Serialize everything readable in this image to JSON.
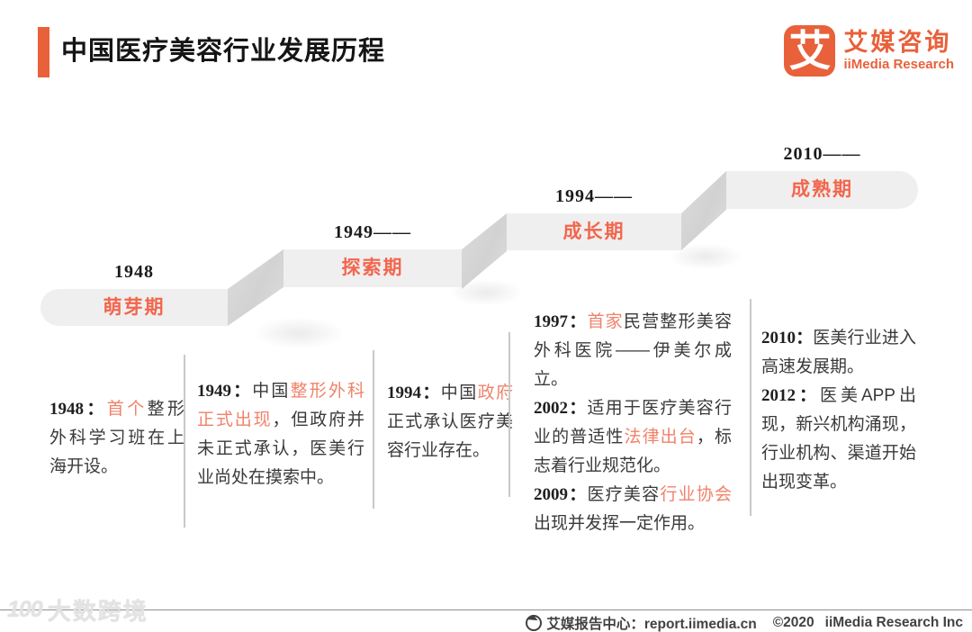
{
  "header": {
    "title": "中国医疗美容行业发展历程",
    "logo": {
      "mark": "艾",
      "name_cn": "艾媒咨询",
      "name_en": "iiMedia Research"
    }
  },
  "colors": {
    "accent_orange": "#E8613B",
    "stage_label_orange": "#F2664D",
    "highlight_salmon": "#F0826A",
    "stair_bar_gray": "#F0EFEF",
    "connector_gray": "#D7D7D7"
  },
  "timeline": {
    "stages": [
      {
        "year": "1948",
        "label": "萌芽期"
      },
      {
        "year": "1949——",
        "label": "探索期"
      },
      {
        "year": "1994——",
        "label": "成长期"
      },
      {
        "year": "2010——",
        "label": "成熟期"
      }
    ]
  },
  "details": {
    "columns": [
      {
        "segments": [
          {
            "t": "1948：",
            "b": 1
          },
          {
            "t": "首个",
            "hl": 1
          },
          {
            "t": "整形外科学习班在上海开设。"
          }
        ]
      },
      {
        "segments": [
          {
            "t": "1949：",
            "b": 1
          },
          {
            "t": "中国"
          },
          {
            "t": "整形外科正式出现",
            "hl": 1
          },
          {
            "t": "，但政府并未正式承认，医美行业尚处在摸索中。"
          }
        ]
      },
      {
        "segments": [
          {
            "t": "1994：",
            "b": 1
          },
          {
            "t": "中国"
          },
          {
            "t": "政府",
            "hl": 1
          },
          {
            "t": "正式承认医疗美容行业存在。"
          }
        ]
      },
      {
        "segments": [
          {
            "t": "1997：",
            "b": 1
          },
          {
            "t": "首家",
            "hl": 1
          },
          {
            "t": "民营整形美容外科医院——伊美尔成立。"
          },
          {
            "t": "\n2002：",
            "b": 1
          },
          {
            "t": "适用于医疗美容行业的普适性"
          },
          {
            "t": "法律出台",
            "hl": 1
          },
          {
            "t": "，标志着行业规范化。"
          },
          {
            "t": "\n2009：",
            "b": 1
          },
          {
            "t": "医疗美容"
          },
          {
            "t": "行业协会",
            "hl": 1
          },
          {
            "t": "出现并发挥一定作用。"
          }
        ]
      },
      {
        "segments": [
          {
            "t": "2010：",
            "b": 1
          },
          {
            "t": "医美行业进入高速发展期。"
          },
          {
            "t": "\n2012：",
            "b": 1
          },
          {
            "t": "医美APP出现，新兴机构涌现，行业机构、渠道开始出现变革。"
          }
        ]
      }
    ]
  },
  "watermark": {
    "mark": "100",
    "text": "大数跨境"
  },
  "footer": {
    "report_center": "艾媒报告中心：report.iimedia.cn",
    "copyright": "©2020",
    "company": "iiMedia Research  Inc"
  }
}
